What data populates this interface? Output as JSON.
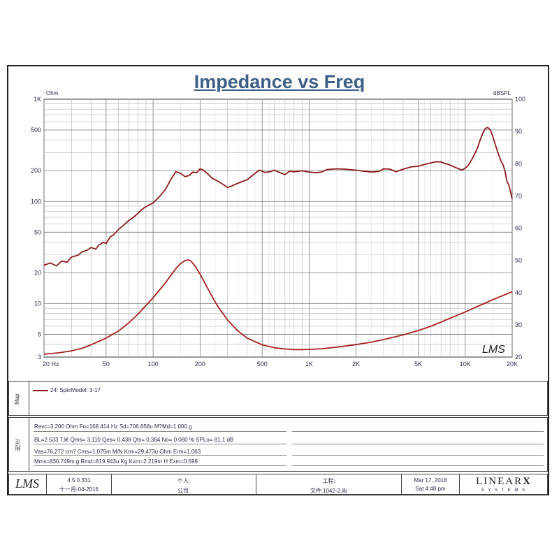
{
  "chart_data": {
    "type": "line",
    "title": "Impedance vs Freq",
    "left_axis_unit": "Ohm",
    "right_axis_unit": "dBSPL",
    "x_scale": "log",
    "xlim": [
      20,
      20000
    ],
    "y_left_scale": "log",
    "y_left_lim": [
      3,
      1000
    ],
    "y_right_lim": [
      20,
      100
    ],
    "x_ticks": [
      {
        "v": 20,
        "label": "20 Hz"
      },
      {
        "v": 50,
        "label": "50"
      },
      {
        "v": 100,
        "label": "100"
      },
      {
        "v": 200,
        "label": "200"
      },
      {
        "v": 500,
        "label": "500"
      },
      {
        "v": 1000,
        "label": "1K"
      },
      {
        "v": 2000,
        "label": "2K"
      },
      {
        "v": 5000,
        "label": "5K"
      },
      {
        "v": 10000,
        "label": "10K"
      },
      {
        "v": 20000,
        "label": "20K"
      }
    ],
    "y_left_ticks": [
      {
        "v": 1000,
        "label": "1K"
      },
      {
        "v": 500,
        "label": "500"
      },
      {
        "v": 200,
        "label": "200"
      },
      {
        "v": 100,
        "label": "100"
      },
      {
        "v": 50,
        "label": "50"
      },
      {
        "v": 20,
        "label": "20"
      },
      {
        "v": 10,
        "label": "10"
      },
      {
        "v": 5,
        "label": "5"
      },
      {
        "v": 3,
        "label": "3"
      }
    ],
    "y_right_ticks": [
      {
        "v": 100,
        "label": "100"
      },
      {
        "v": 90,
        "label": "90"
      },
      {
        "v": 80,
        "label": "80"
      },
      {
        "v": 70,
        "label": "70"
      },
      {
        "v": 60,
        "label": "60"
      },
      {
        "v": 50,
        "label": "50"
      },
      {
        "v": 40,
        "label": "40"
      },
      {
        "v": 30,
        "label": "30"
      },
      {
        "v": 20,
        "label": "20"
      }
    ],
    "grid": true,
    "series": [
      {
        "name": "SPL",
        "axis": "right",
        "color": "#8b1a1a",
        "points": [
          [
            20,
            48.5
          ],
          [
            22,
            49.2
          ],
          [
            24,
            48.3
          ],
          [
            26,
            49.8
          ],
          [
            28,
            49.4
          ],
          [
            30,
            51.0
          ],
          [
            33,
            51.6
          ],
          [
            35,
            52.6
          ],
          [
            38,
            53.2
          ],
          [
            40,
            54.0
          ],
          [
            43,
            53.5
          ],
          [
            45,
            54.8
          ],
          [
            48,
            55.6
          ],
          [
            50,
            55.2
          ],
          [
            53,
            57.2
          ],
          [
            56,
            58.0
          ],
          [
            60,
            59.6
          ],
          [
            65,
            61.0
          ],
          [
            70,
            62.4
          ],
          [
            75,
            63.4
          ],
          [
            80,
            64.6
          ],
          [
            85,
            65.8
          ],
          [
            90,
            66.7
          ],
          [
            100,
            67.8
          ],
          [
            110,
            69.8
          ],
          [
            120,
            72.0
          ],
          [
            130,
            75.2
          ],
          [
            140,
            77.5
          ],
          [
            150,
            77.0
          ],
          [
            160,
            76.0
          ],
          [
            170,
            76.3
          ],
          [
            180,
            77.4
          ],
          [
            190,
            77.2
          ],
          [
            200,
            78.4
          ],
          [
            210,
            78.0
          ],
          [
            220,
            77.2
          ],
          [
            240,
            75.4
          ],
          [
            260,
            74.6
          ],
          [
            280,
            73.6
          ],
          [
            300,
            72.6
          ],
          [
            330,
            73.4
          ],
          [
            360,
            74.2
          ],
          [
            400,
            75.0
          ],
          [
            450,
            77.0
          ],
          [
            480,
            78.0
          ],
          [
            520,
            77.3
          ],
          [
            560,
            77.5
          ],
          [
            600,
            78.0
          ],
          [
            650,
            77.2
          ],
          [
            700,
            76.6
          ],
          [
            750,
            77.7
          ],
          [
            800,
            77.5
          ],
          [
            900,
            77.8
          ],
          [
            1000,
            77.4
          ],
          [
            1100,
            77.2
          ],
          [
            1200,
            77.4
          ],
          [
            1300,
            78.2
          ],
          [
            1500,
            78.4
          ],
          [
            1700,
            78.3
          ],
          [
            2000,
            78.0
          ],
          [
            2200,
            77.7
          ],
          [
            2500,
            77.4
          ],
          [
            2800,
            77.6
          ],
          [
            3000,
            78.4
          ],
          [
            3300,
            78.3
          ],
          [
            3600,
            77.5
          ],
          [
            4000,
            78.3
          ],
          [
            4500,
            79.0
          ],
          [
            5000,
            79.2
          ],
          [
            5500,
            79.8
          ],
          [
            6000,
            80.2
          ],
          [
            6500,
            80.6
          ],
          [
            7000,
            80.5
          ],
          [
            7500,
            80.0
          ],
          [
            8000,
            79.6
          ],
          [
            8500,
            79.0
          ],
          [
            9000,
            78.5
          ],
          [
            9500,
            78.0
          ],
          [
            10000,
            78.6
          ],
          [
            10500,
            79.6
          ],
          [
            11000,
            81.2
          ],
          [
            11500,
            83.0
          ],
          [
            12000,
            85.0
          ],
          [
            12500,
            87.5
          ],
          [
            13000,
            89.6
          ],
          [
            13500,
            91.0
          ],
          [
            14000,
            91.2
          ],
          [
            14500,
            90.4
          ],
          [
            15000,
            88.6
          ],
          [
            15500,
            86.3
          ],
          [
            16000,
            84.2
          ],
          [
            16500,
            82.4
          ],
          [
            17000,
            80.7
          ],
          [
            17500,
            79.6
          ],
          [
            18000,
            77.6
          ],
          [
            18500,
            74.5
          ],
          [
            19000,
            73.5
          ],
          [
            19500,
            71.4
          ],
          [
            20000,
            69.0
          ]
        ]
      },
      {
        "name": "Impedance",
        "axis": "left",
        "color": "#a82020",
        "points": [
          [
            20,
            3.2
          ],
          [
            25,
            3.3
          ],
          [
            30,
            3.45
          ],
          [
            35,
            3.65
          ],
          [
            40,
            3.95
          ],
          [
            50,
            4.6
          ],
          [
            60,
            5.4
          ],
          [
            70,
            6.5
          ],
          [
            80,
            7.9
          ],
          [
            90,
            9.6
          ],
          [
            100,
            11.4
          ],
          [
            110,
            13.6
          ],
          [
            120,
            16.0
          ],
          [
            130,
            19.0
          ],
          [
            140,
            22.0
          ],
          [
            150,
            24.6
          ],
          [
            160,
            26.4
          ],
          [
            168,
            26.8
          ],
          [
            175,
            26.0
          ],
          [
            185,
            23.5
          ],
          [
            200,
            19.5
          ],
          [
            220,
            14.8
          ],
          [
            240,
            11.6
          ],
          [
            260,
            9.4
          ],
          [
            300,
            6.9
          ],
          [
            350,
            5.4
          ],
          [
            400,
            4.6
          ],
          [
            500,
            3.95
          ],
          [
            600,
            3.7
          ],
          [
            700,
            3.6
          ],
          [
            800,
            3.55
          ],
          [
            900,
            3.55
          ],
          [
            1000,
            3.57
          ],
          [
            1200,
            3.62
          ],
          [
            1500,
            3.75
          ],
          [
            2000,
            3.97
          ],
          [
            2500,
            4.2
          ],
          [
            3000,
            4.45
          ],
          [
            4000,
            4.95
          ],
          [
            5000,
            5.45
          ],
          [
            6000,
            6.0
          ],
          [
            7000,
            6.6
          ],
          [
            8000,
            7.2
          ],
          [
            10000,
            8.3
          ],
          [
            12000,
            9.4
          ],
          [
            15000,
            10.9
          ],
          [
            20000,
            13.1
          ]
        ]
      }
    ],
    "annotation": "LMS"
  },
  "map_panel": {
    "label": "Map",
    "legend_entry": "24: SpkrModel: 3-17",
    "legend_color": "#8b1a1a"
  },
  "notes_panel": {
    "label": "附注",
    "lines": [
      "Revc=3.200 Ohm  Fo=168.414 Hz  Sd=706.858u M?Md=1.000 g",
      "BL=2.533 T米  Qms= 3.110  Qes= 0.438  Qts= 0.384  No= 0.080 %  SPLo= 81.1 dB",
      "Vas=76.272 cm? Cms=1.075m M/N  Krm=29.473u Ohm  Erm=1.063",
      "Mms=830.749m g  Rmd=819.943u Kg  Kxm=2.219m H  Exm=0.698"
    ]
  },
  "footer": {
    "logo_text": "LMS",
    "version": "4.5.0.331",
    "date_cn": "十一月-04-2016",
    "person_label": "个人:",
    "company_label": "公司:",
    "project_label": "工程:",
    "file_label": "文件:1042-2.lib",
    "date": "Mar 17, 2018",
    "time": "Sat  4:48 pm",
    "brand_main": "LINEAR",
    "brand_x": "X",
    "brand_sub": "S Y S T E M S"
  }
}
